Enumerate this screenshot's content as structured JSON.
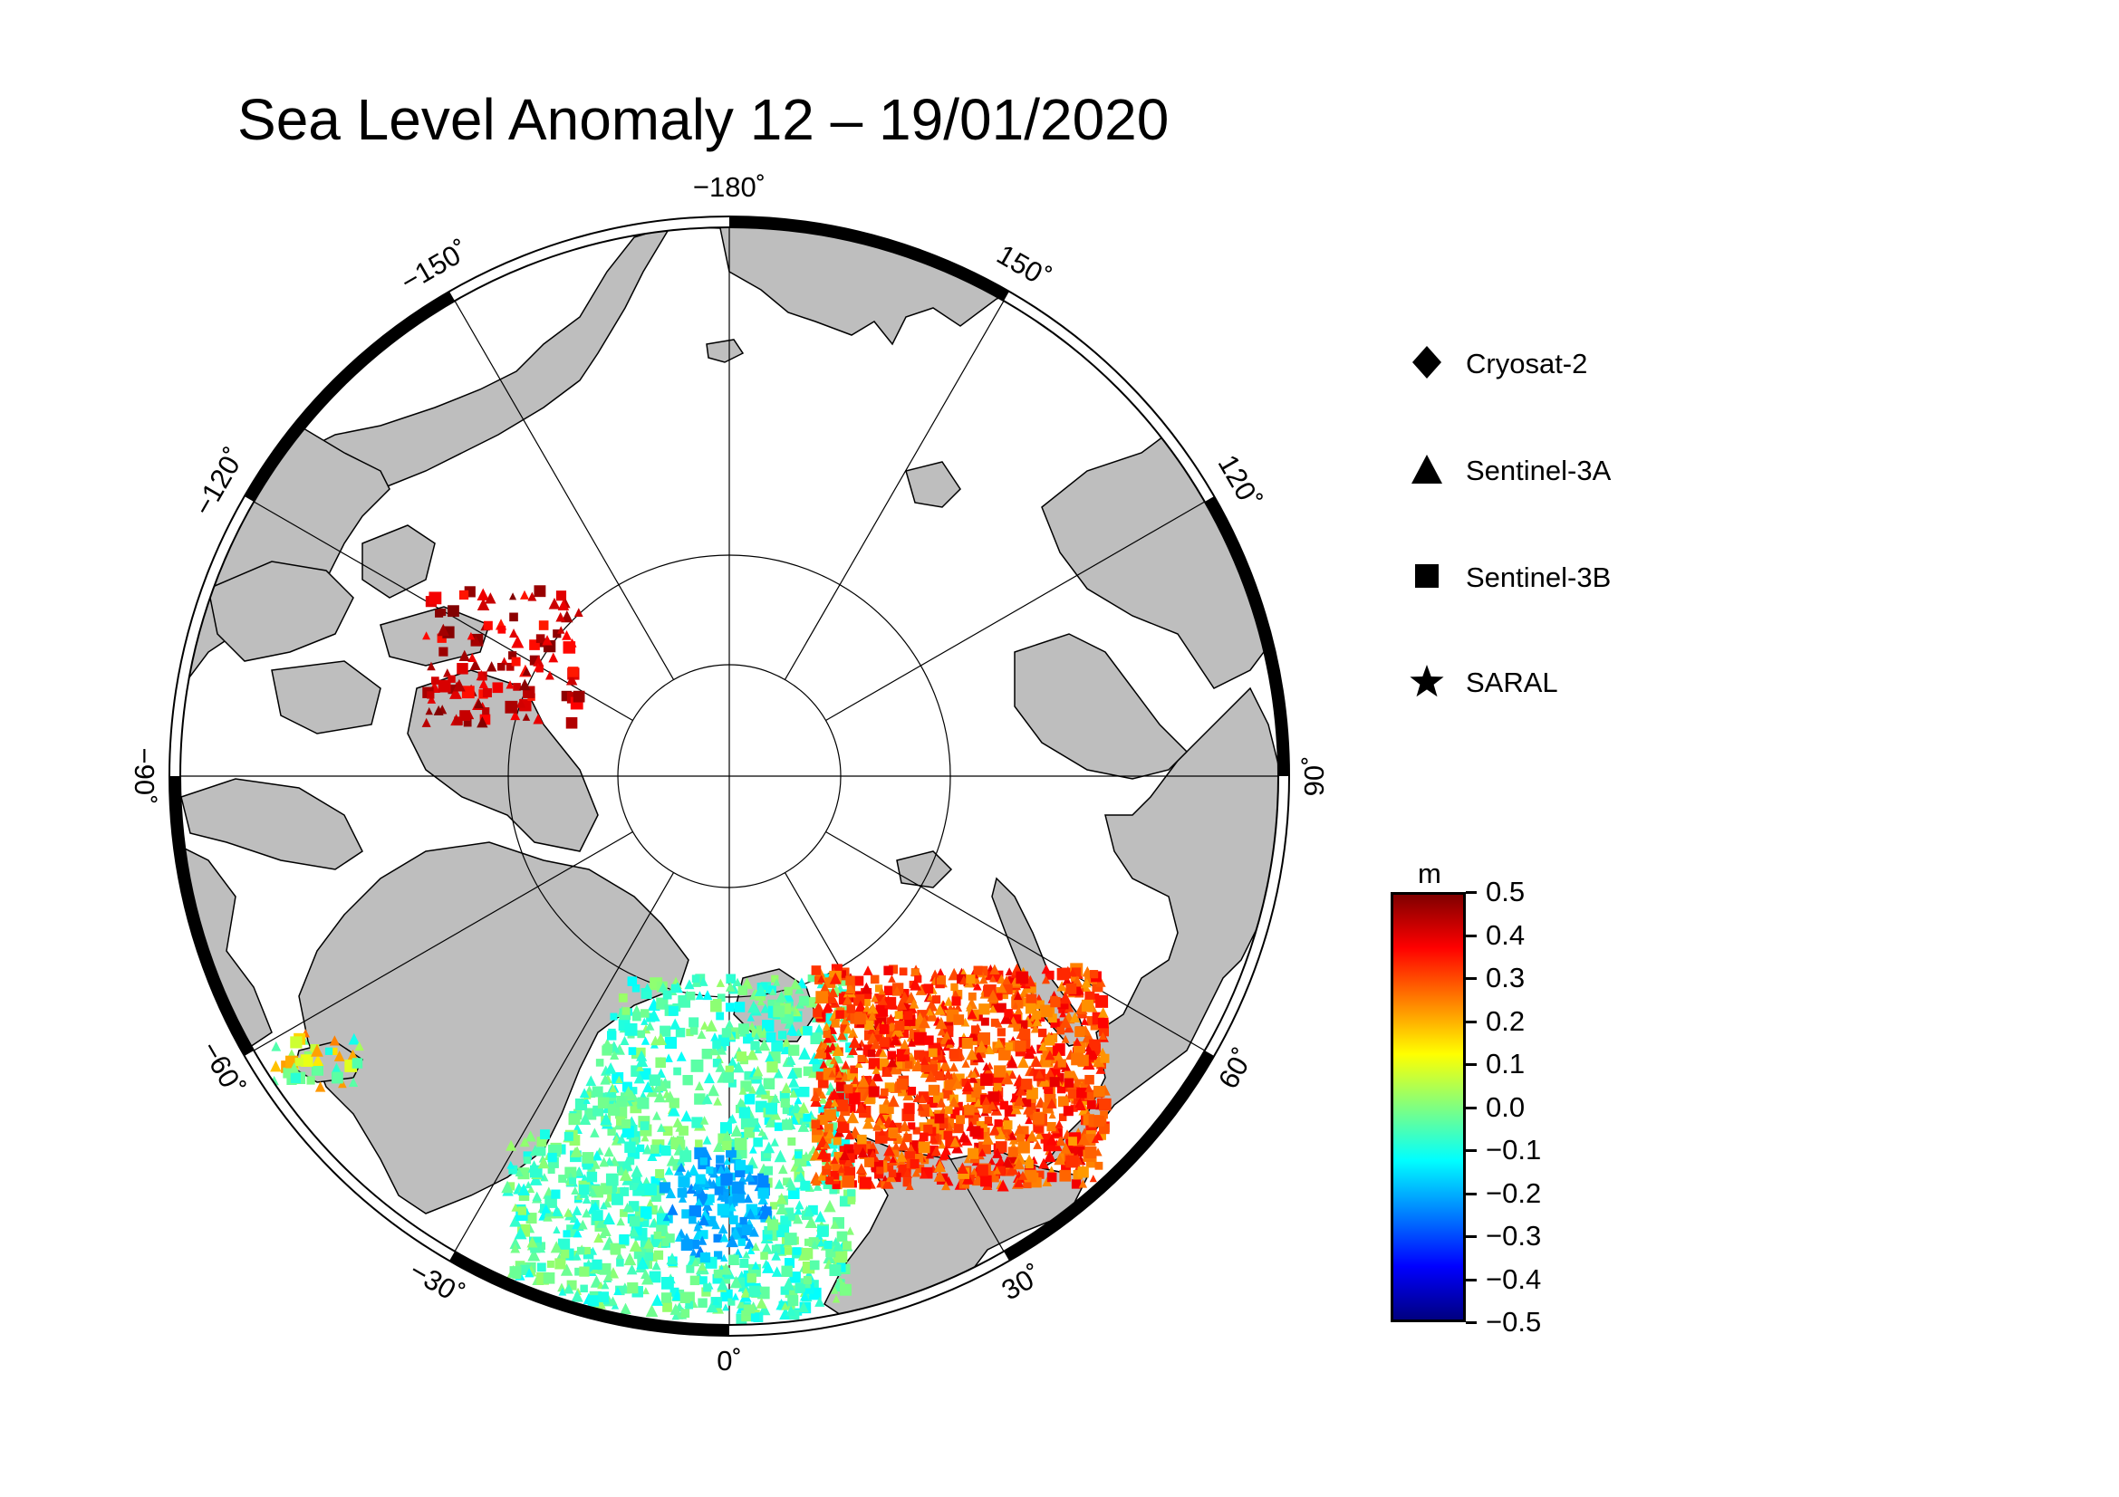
{
  "title": "Sea Level Anomaly 12 – 19/01/2020",
  "map": {
    "projection": "polar stereographic (north pole)",
    "longitude_labels": [
      {
        "key": "lon_m180",
        "text": "−180˚",
        "lon": -180
      },
      {
        "key": "lon_m150",
        "text": "−150˚",
        "lon": -150
      },
      {
        "key": "lon_m120",
        "text": "−120˚",
        "lon": -120
      },
      {
        "key": "lon_m90",
        "text": "−90˚",
        "lon": -90
      },
      {
        "key": "lon_m60",
        "text": "−60˚",
        "lon": -60
      },
      {
        "key": "lon_m30",
        "text": "−30˚",
        "lon": -30
      },
      {
        "key": "lon_0",
        "text": "0˚",
        "lon": 0
      },
      {
        "key": "lon_30",
        "text": "30˚",
        "lon": 30
      },
      {
        "key": "lon_60",
        "text": "60˚",
        "lon": 60
      },
      {
        "key": "lon_90",
        "text": "90˚",
        "lon": 90
      },
      {
        "key": "lon_120",
        "text": "120˚",
        "lon": 120
      },
      {
        "key": "lon_150",
        "text": "150˚",
        "lon": 150
      }
    ],
    "colors": {
      "land": "#bebebe",
      "ocean": "#ffffff",
      "coast": "#000000",
      "grid": "#000000"
    }
  },
  "legend": {
    "items": [
      {
        "label": "Cryosat-2",
        "symbol": "diamond"
      },
      {
        "label": "Sentinel-3A",
        "symbol": "triangle"
      },
      {
        "label": "Sentinel-3B",
        "symbol": "square"
      },
      {
        "label": "SARAL",
        "symbol": "star"
      }
    ]
  },
  "colorbar": {
    "unit": "m",
    "labels": [
      "0.5",
      "0.4",
      "0.3",
      "0.2",
      "0.1",
      "0.0",
      "−0.1",
      "−0.2",
      "−0.3",
      "−0.4",
      "−0.5"
    ],
    "range": [
      -0.5,
      0.5
    ],
    "colors": [
      "#000080",
      "#0000ff",
      "#0080ff",
      "#00ffff",
      "#80ff80",
      "#ffff00",
      "#ff8000",
      "#ff0000",
      "#800000"
    ]
  }
}
